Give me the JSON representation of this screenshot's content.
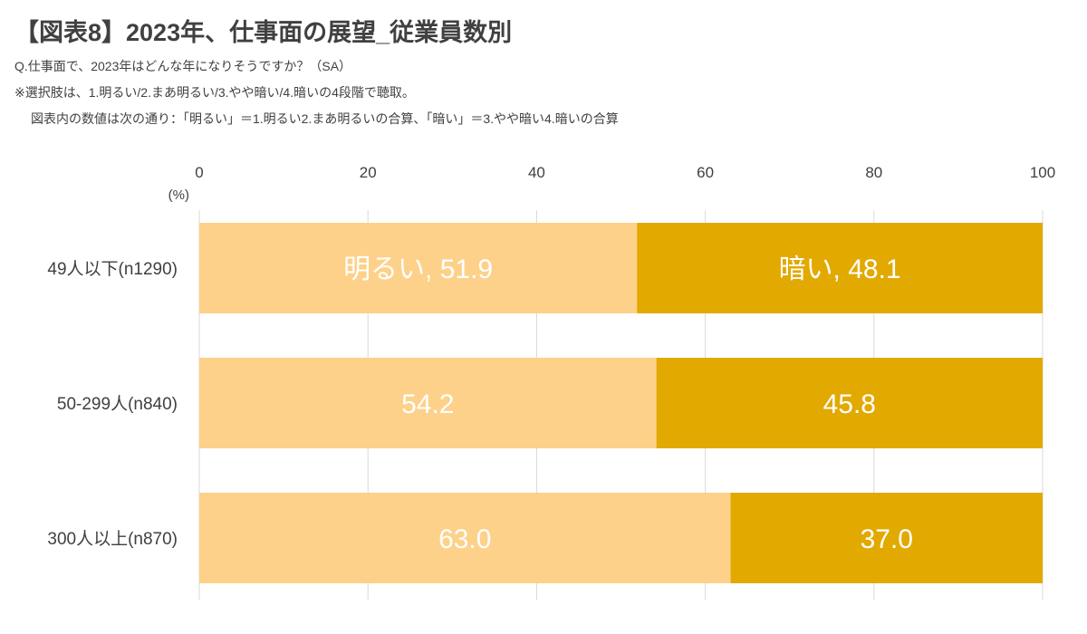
{
  "title": "【図表8】2023年、仕事面の展望_従業員数別",
  "question": "Q.仕事面で、2023年はどんな年になりそうですか？（SA）",
  "note_line1": "※選択肢は、1.明るい/2.まあ明るい/3.やや暗い/4.暗いの4段階で聴取。",
  "note_line2": "図表内の数値は次の通り：「明るい」＝1.明るい2.まあ明るいの合算、「暗い」＝3.やや暗い4.暗いの合算",
  "colors": {
    "bright": "#fdd189",
    "dark": "#e2a900",
    "grid": "#d9d9d9",
    "text": "#404040",
    "label": "#ffffff"
  },
  "chart_data": {
    "type": "bar",
    "orientation": "horizontal",
    "stacked": true,
    "unit_label": "(%)",
    "xlim": [
      0,
      100
    ],
    "x_ticks": [
      "0",
      "20",
      "40",
      "60",
      "80",
      "100"
    ],
    "grid": true,
    "legend": "none",
    "categories": [
      "49人以下(n1290)",
      "50-299人(n840)",
      "300人以上(n870)"
    ],
    "series": [
      {
        "name": "明るい",
        "values": [
          51.9,
          54.2,
          63.0
        ]
      },
      {
        "name": "暗い",
        "values": [
          48.1,
          45.8,
          37.0
        ]
      }
    ],
    "data_labels": [
      [
        "明るい, 51.9",
        "54.2",
        "63.0"
      ],
      [
        "暗い, 48.1",
        "45.8",
        "37.0"
      ]
    ]
  }
}
